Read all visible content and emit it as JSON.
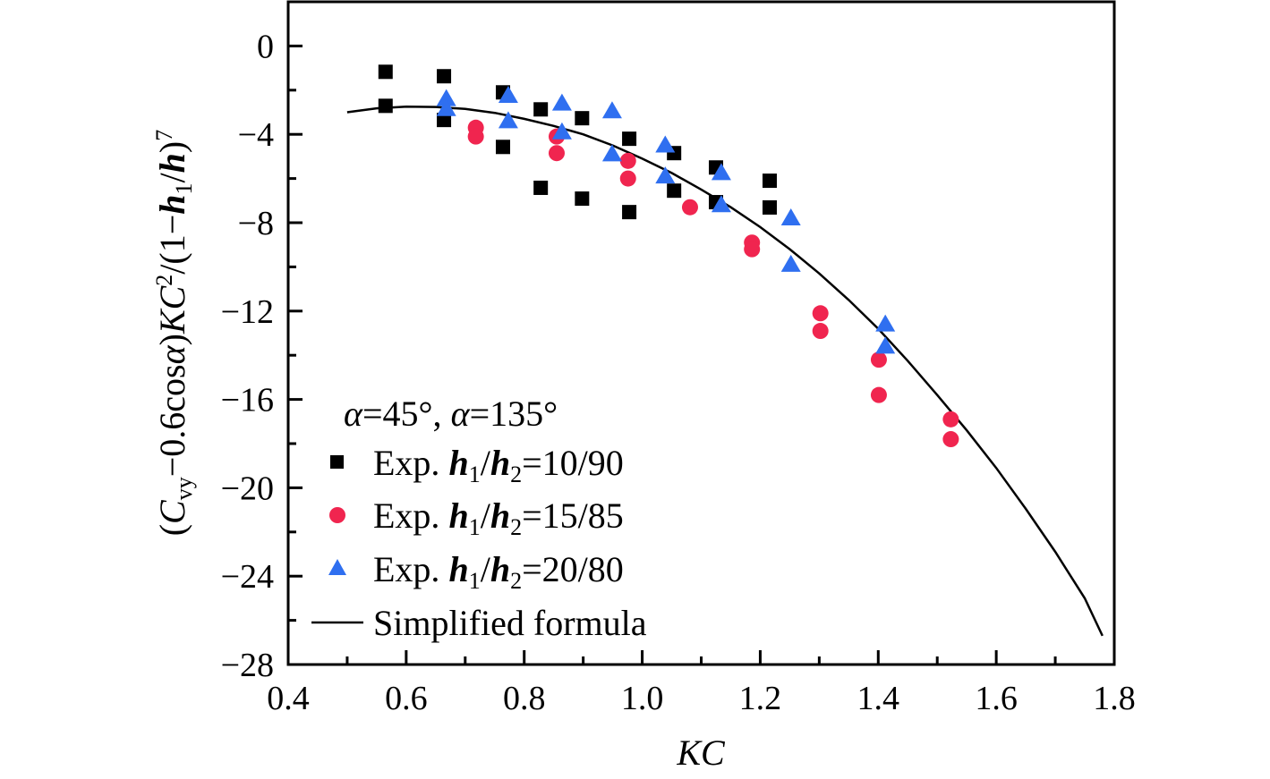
{
  "chart_data": {
    "type": "scatter",
    "title": "",
    "xlabel": "KC",
    "ylabel": "(C_vy−0.6cosα)KC²/(1−h₁/h)⁷",
    "ylabel_parts": {
      "open": "(",
      "C": "C",
      "vy": "vy",
      "mid": "−0.6cos",
      "alpha": "α",
      "close": ")",
      "KC": "KC",
      "sq": "2",
      "rest": "/(1−",
      "h1": "h",
      "sub1": "1",
      "slash": "/",
      "h": "h",
      "end": ")",
      "pow": "7"
    },
    "xlim": [
      0.4,
      1.8
    ],
    "ylim": [
      -28,
      2
    ],
    "xticks": [
      0.4,
      0.6,
      0.8,
      1.0,
      1.2,
      1.4,
      1.6,
      1.8
    ],
    "xtick_labels": [
      "0.4",
      "0.6",
      "0.8",
      "1.0",
      "1.2",
      "1.4",
      "1.6",
      "1.8"
    ],
    "yticks": [
      0,
      -4,
      -8,
      -12,
      -16,
      -20,
      -24,
      -28
    ],
    "ytick_labels": [
      "0",
      "−4",
      "−8",
      "−12",
      "−16",
      "−20",
      "−24",
      "−28"
    ],
    "grid": false,
    "legend_position": "bottom-left",
    "legend_title": "α=45°, α=135°",
    "series": [
      {
        "name": "Exp. h1/h2=10/90",
        "label_prefix": "Exp. ",
        "label_ratio": "=10/90",
        "marker": "square",
        "color": "#000000",
        "points": [
          [
            0.565,
            -1.17
          ],
          [
            0.565,
            -2.71
          ],
          [
            0.664,
            -1.37
          ],
          [
            0.664,
            -3.35
          ],
          [
            0.764,
            -2.1
          ],
          [
            0.764,
            -4.57
          ],
          [
            0.828,
            -2.87
          ],
          [
            0.828,
            -6.42
          ],
          [
            0.898,
            -3.27
          ],
          [
            0.898,
            -6.91
          ],
          [
            0.978,
            -4.2
          ],
          [
            0.978,
            -7.52
          ],
          [
            1.054,
            -4.85
          ],
          [
            1.054,
            -6.55
          ],
          [
            1.125,
            -5.5
          ],
          [
            1.125,
            -7.07
          ],
          [
            1.216,
            -6.1
          ],
          [
            1.216,
            -7.31
          ]
        ]
      },
      {
        "name": "Exp. h1/h2=15/85",
        "label_prefix": "Exp. ",
        "label_ratio": "=15/85",
        "marker": "circle",
        "color": "#F0254F",
        "points": [
          [
            0.718,
            -3.7
          ],
          [
            0.718,
            -4.1
          ],
          [
            0.855,
            -4.1
          ],
          [
            0.855,
            -4.85
          ],
          [
            0.976,
            -5.2
          ],
          [
            0.976,
            -6.0
          ],
          [
            1.081,
            -7.3
          ],
          [
            1.186,
            -8.9
          ],
          [
            1.186,
            -9.2
          ],
          [
            1.302,
            -12.1
          ],
          [
            1.302,
            -12.9
          ],
          [
            1.401,
            -14.2
          ],
          [
            1.401,
            -15.8
          ],
          [
            1.523,
            -16.9
          ],
          [
            1.523,
            -17.8
          ]
        ]
      },
      {
        "name": "Exp. h1/h2=20/80",
        "label_prefix": "Exp. ",
        "label_ratio": "=20/80",
        "marker": "triangle",
        "color": "#2F6FF0",
        "points": [
          [
            0.668,
            -2.4
          ],
          [
            0.668,
            -2.85
          ],
          [
            0.773,
            -2.25
          ],
          [
            0.773,
            -3.4
          ],
          [
            0.864,
            -2.6
          ],
          [
            0.864,
            -3.9
          ],
          [
            0.949,
            -2.95
          ],
          [
            0.949,
            -4.9
          ],
          [
            1.039,
            -4.5
          ],
          [
            1.039,
            -5.9
          ],
          [
            1.134,
            -5.75
          ],
          [
            1.134,
            -7.2
          ],
          [
            1.252,
            -7.8
          ],
          [
            1.252,
            -9.9
          ],
          [
            1.412,
            -12.6
          ],
          [
            1.412,
            -13.6
          ]
        ]
      },
      {
        "name": "Simplified formula",
        "marker": "line",
        "color": "#000000",
        "points": [
          [
            0.5,
            -3.0
          ],
          [
            0.55,
            -2.82
          ],
          [
            0.6,
            -2.75
          ],
          [
            0.65,
            -2.76
          ],
          [
            0.7,
            -2.85
          ],
          [
            0.75,
            -3.03
          ],
          [
            0.8,
            -3.3
          ],
          [
            0.85,
            -3.62
          ],
          [
            0.9,
            -4.0
          ],
          [
            0.95,
            -4.5
          ],
          [
            1.0,
            -5.1
          ],
          [
            1.05,
            -5.75
          ],
          [
            1.1,
            -6.5
          ],
          [
            1.15,
            -7.3
          ],
          [
            1.2,
            -8.2
          ],
          [
            1.25,
            -9.2
          ],
          [
            1.3,
            -10.3
          ],
          [
            1.35,
            -11.5
          ],
          [
            1.4,
            -12.8
          ],
          [
            1.45,
            -14.25
          ],
          [
            1.5,
            -15.8
          ],
          [
            1.55,
            -17.4
          ],
          [
            1.6,
            -19.1
          ],
          [
            1.65,
            -20.95
          ],
          [
            1.7,
            -22.9
          ],
          [
            1.75,
            -25.0
          ],
          [
            1.78,
            -26.7
          ]
        ]
      }
    ]
  }
}
